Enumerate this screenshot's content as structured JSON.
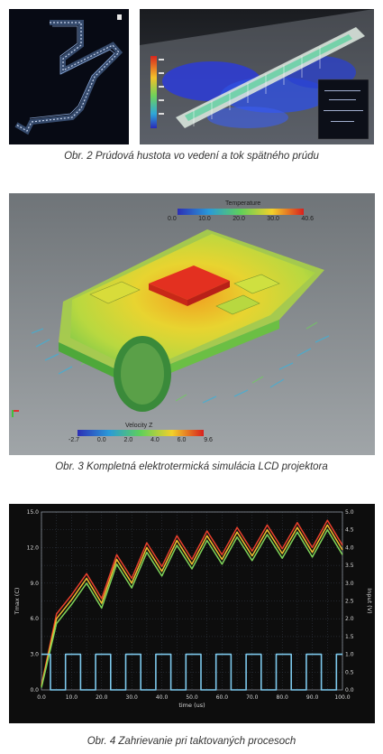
{
  "figure2": {
    "caption": "Obr. 2  Prúdová hustota vo vedení a tok spätného prúdu"
  },
  "figure3": {
    "caption": "Obr. 3  Kompletná elektrotermická simulácia LCD projektora",
    "temperature_scale": {
      "title": "Temperature",
      "ticks": [
        "0.0",
        "10.0",
        "20.0",
        "30.0",
        "40.6"
      ]
    },
    "velocity_scale": {
      "title": "Velocity Z",
      "ticks": [
        "-2.7",
        "0.0",
        "2.0",
        "4.0",
        "6.0",
        "9.6"
      ]
    }
  },
  "figure4": {
    "caption": "Obr. 4  Zahrievanie pri taktovaných procesoch",
    "colors": {
      "background": "#0d0d0d",
      "grid": "#3a4250",
      "pulse": "#7dc8ec"
    }
  },
  "chart_data": {
    "type": "line",
    "xlabel": "time (us)",
    "ylabel": "Tmax (C)",
    "y2label": "Input (V)",
    "xlim": [
      0,
      100
    ],
    "ylim": [
      0,
      15
    ],
    "y2lim": [
      0,
      5
    ],
    "x_ticks": [
      "0.0",
      "10.0",
      "20.0",
      "30.0",
      "40.0",
      "50.0",
      "60.0",
      "70.0",
      "80.0",
      "90.0",
      "100.0"
    ],
    "y_ticks": [
      "0.0",
      "3.0",
      "6.0",
      "9.0",
      "12.0",
      "15.0"
    ],
    "y2_ticks": [
      "0.0",
      "0.5",
      "1.0",
      "1.5",
      "2.0",
      "2.5",
      "3.0",
      "3.5",
      "4.0",
      "4.5",
      "5.0"
    ],
    "series": [
      {
        "color": "#e8402c",
        "x": [
          0,
          5,
          10,
          15,
          20,
          25,
          30,
          35,
          40,
          45,
          50,
          55,
          60,
          65,
          70,
          75,
          80,
          85,
          90,
          95,
          100
        ],
        "values": [
          0.4,
          6.4,
          8.0,
          9.8,
          7.7,
          11.4,
          9.4,
          12.4,
          10.4,
          13.0,
          11.0,
          13.4,
          11.4,
          13.7,
          11.7,
          13.9,
          11.9,
          14.1,
          12.0,
          14.3,
          12.2
        ]
      },
      {
        "color": "#f0c030",
        "x": [
          0,
          5,
          10,
          15,
          20,
          25,
          30,
          35,
          40,
          45,
          50,
          55,
          60,
          65,
          70,
          75,
          80,
          85,
          90,
          95,
          100
        ],
        "values": [
          0.3,
          6.0,
          7.6,
          9.4,
          7.3,
          11.0,
          9.0,
          12.0,
          10.0,
          12.6,
          10.6,
          13.0,
          11.0,
          13.3,
          11.3,
          13.5,
          11.5,
          13.7,
          11.6,
          13.9,
          11.8
        ]
      },
      {
        "color": "#7fd45a",
        "x": [
          0,
          5,
          10,
          15,
          20,
          25,
          30,
          35,
          40,
          45,
          50,
          55,
          60,
          65,
          70,
          75,
          80,
          85,
          90,
          95,
          100
        ],
        "values": [
          0.2,
          5.6,
          7.2,
          9.0,
          6.9,
          10.6,
          8.6,
          11.6,
          9.6,
          12.2,
          10.2,
          12.6,
          10.6,
          12.9,
          10.9,
          13.1,
          11.1,
          13.3,
          11.2,
          13.5,
          11.4
        ]
      },
      {
        "axis": "y2",
        "color": "#7dc8ec",
        "x": [
          0,
          3,
          3,
          8,
          8,
          13,
          13,
          18,
          18,
          23,
          23,
          28,
          28,
          33,
          33,
          38,
          38,
          43,
          43,
          48,
          48,
          53,
          53,
          58,
          58,
          63,
          63,
          68,
          68,
          73,
          73,
          78,
          78,
          83,
          83,
          88,
          88,
          93,
          93,
          98,
          98,
          100
        ],
        "values": [
          1,
          1,
          0,
          0,
          1,
          1,
          0,
          0,
          1,
          1,
          0,
          0,
          1,
          1,
          0,
          0,
          1,
          1,
          0,
          0,
          1,
          1,
          0,
          0,
          1,
          1,
          0,
          0,
          1,
          1,
          0,
          0,
          1,
          1,
          0,
          0,
          1,
          1,
          0,
          0,
          1,
          1
        ]
      }
    ]
  }
}
